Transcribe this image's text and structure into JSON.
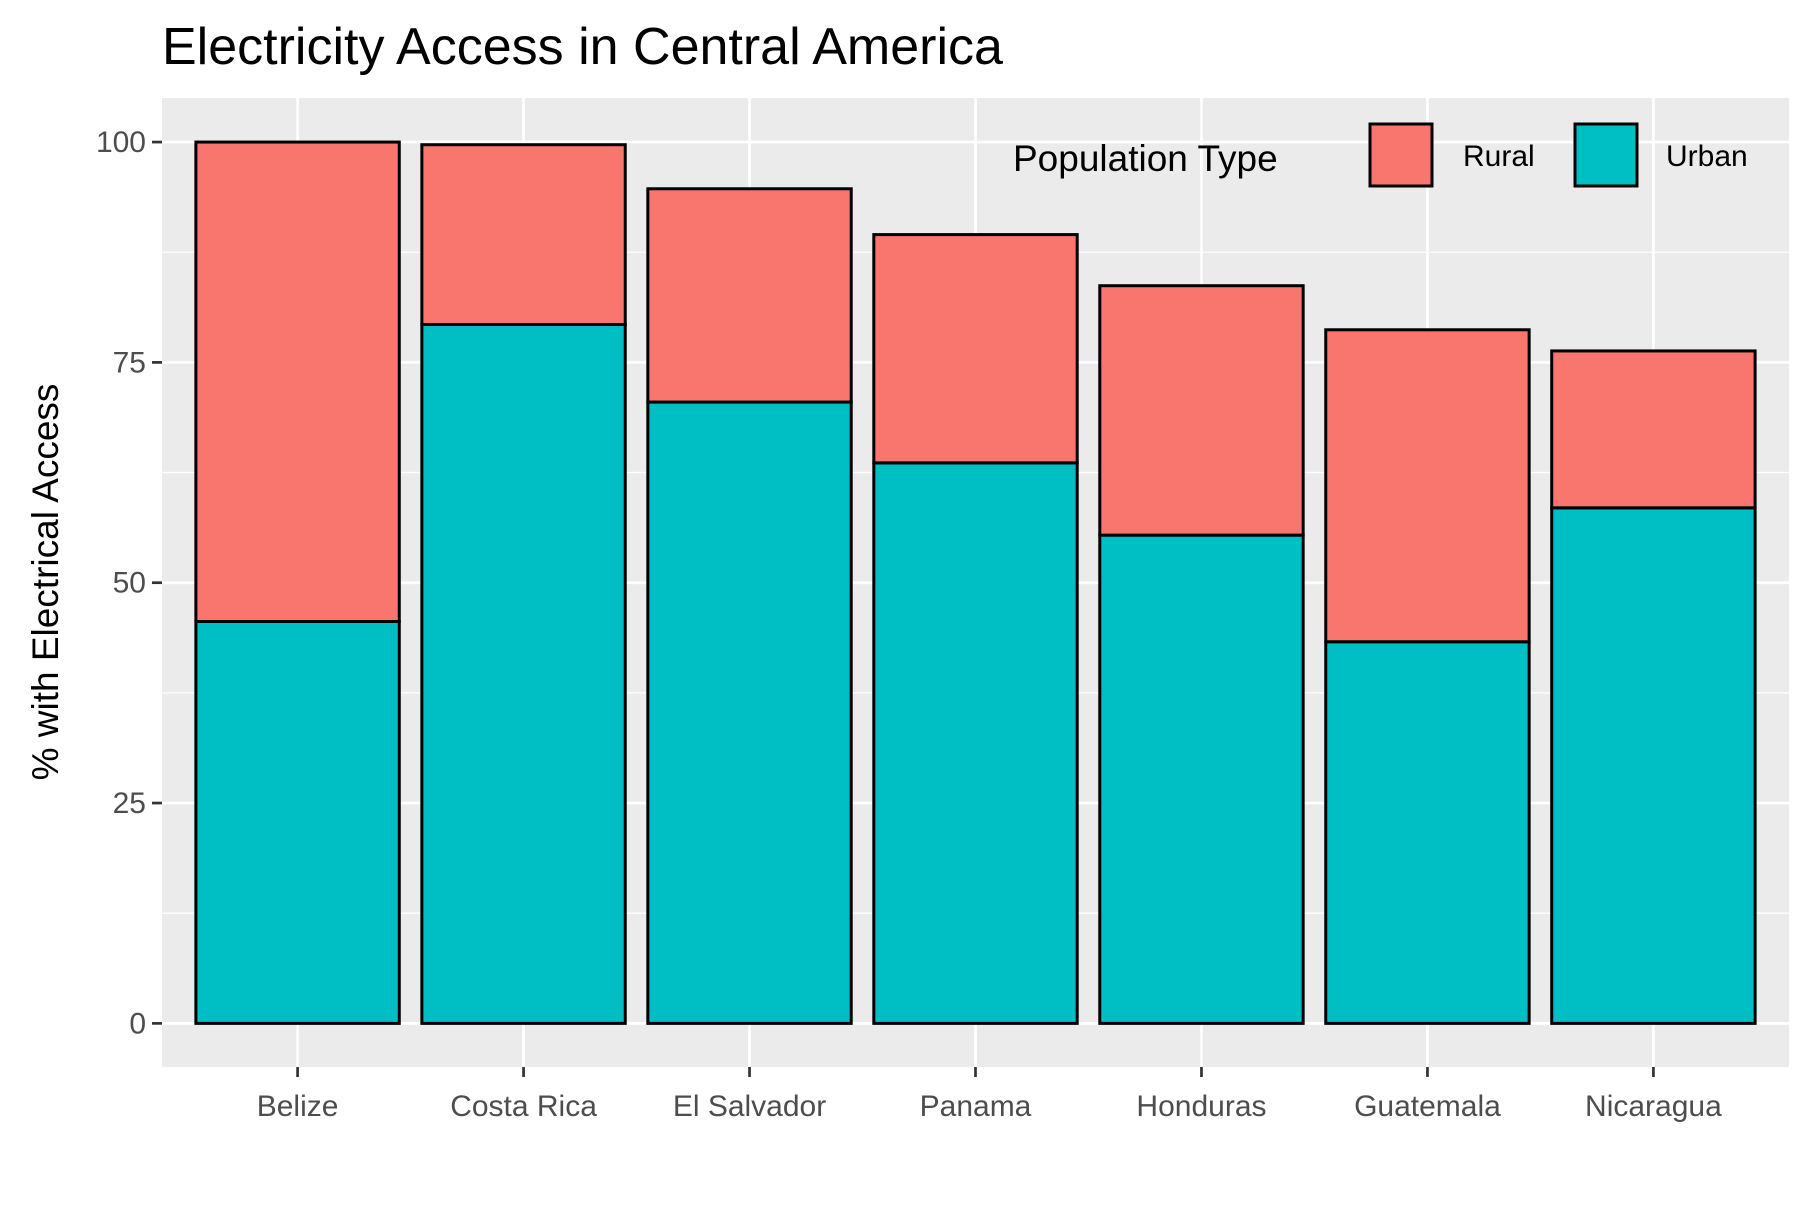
{
  "chart_data": {
    "type": "bar",
    "stacked": true,
    "title": "Electricity Access in Central America",
    "xlabel": "",
    "ylabel": "% with Electrical Access",
    "categories": [
      "Belize",
      "Costa Rica",
      "El Salvador",
      "Panama",
      "Honduras",
      "Guatemala",
      "Nicaragua"
    ],
    "series": [
      {
        "name": "Urban",
        "color": "#00BFC4",
        "values": [
          45.6,
          79.3,
          70.5,
          63.6,
          55.4,
          43.3,
          58.5
        ]
      },
      {
        "name": "Rural",
        "color": "#F8766D",
        "values": [
          54.4,
          20.4,
          24.2,
          25.9,
          28.3,
          35.4,
          17.8
        ]
      }
    ],
    "ylim": [
      -4.95,
      105
    ],
    "yticks": [
      0,
      25,
      50,
      75,
      100
    ],
    "grid": true,
    "legend": {
      "title": "Population Type",
      "position": "top-right",
      "order": [
        "Rural",
        "Urban"
      ]
    }
  }
}
